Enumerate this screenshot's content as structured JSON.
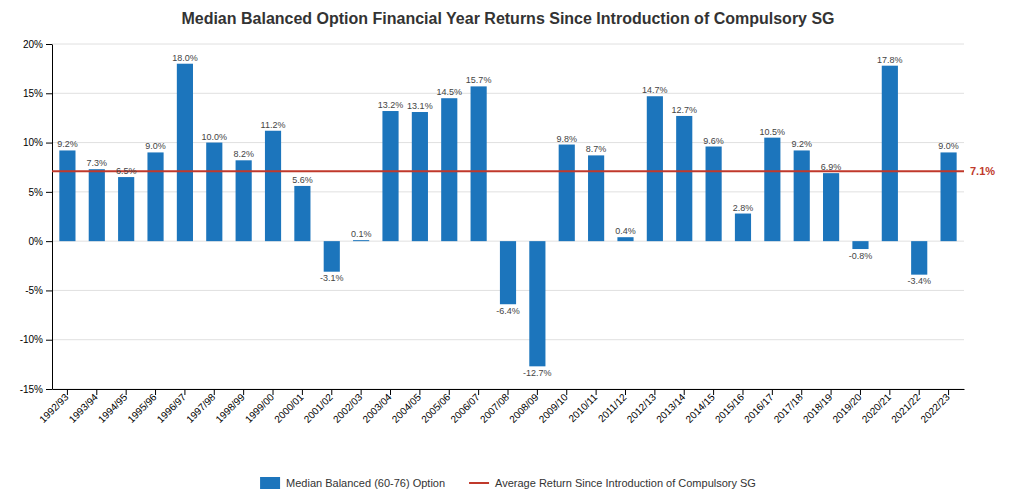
{
  "chart_data": {
    "type": "bar",
    "title": "Median Balanced Option Financial Year Returns Since Introduction of Compulsory SG",
    "categories": [
      "1992/93",
      "1993/94",
      "1994/95",
      "1995/96",
      "1996/97",
      "1997/98",
      "1998/99",
      "1999/00",
      "2000/01",
      "2001/02",
      "2002/03",
      "2003/04",
      "2004/05",
      "2005/06",
      "2006/07",
      "2007/08",
      "2008/09",
      "2009/10",
      "2010/11",
      "2011/12",
      "2012/13",
      "2013/14",
      "2014/15",
      "2015/16",
      "2016/17",
      "2017/18",
      "2018/19",
      "2019/20",
      "2020/21",
      "2021/22",
      "2022/23"
    ],
    "series": [
      {
        "name": "Median Balanced (60-76) Option",
        "type": "bar",
        "color": "#1c75bc",
        "values": [
          9.2,
          7.3,
          6.5,
          9.0,
          18.0,
          10.0,
          8.2,
          11.2,
          5.6,
          -3.1,
          0.1,
          13.2,
          13.1,
          14.5,
          15.7,
          -6.4,
          -12.7,
          9.8,
          8.7,
          0.4,
          14.7,
          12.7,
          9.6,
          2.8,
          10.5,
          9.2,
          6.9,
          -0.8,
          17.8,
          -3.4,
          9.0
        ],
        "value_labels": [
          "9.2%",
          "7.3%",
          "6.5%",
          "9.0%",
          "18.0%",
          "10.0%",
          "8.2%",
          "11.2%",
          "5.6%",
          "-3.1%",
          "0.1%",
          "13.2%",
          "13.1%",
          "14.5%",
          "15.7%",
          "-6.4%",
          "-12.7%",
          "9.8%",
          "8.7%",
          "0.4%",
          "14.7%",
          "12.7%",
          "9.6%",
          "2.8%",
          "10.5%",
          "9.2%",
          "6.9%",
          "-0.8%",
          "17.8%",
          "-3.4%",
          "9.0%"
        ]
      },
      {
        "name": "Average Return Since Introduction of Compulsory SG",
        "type": "hline",
        "color": "#c0392b",
        "value": 7.1,
        "value_label": "7.1%"
      }
    ],
    "ylim": [
      -15,
      20
    ],
    "yticks": [
      {
        "value": -15,
        "label": "-15%"
      },
      {
        "value": -10,
        "label": "-10%"
      },
      {
        "value": -5,
        "label": "-5%"
      },
      {
        "value": 0,
        "label": "0%"
      },
      {
        "value": 5,
        "label": "5%"
      },
      {
        "value": 10,
        "label": "10%"
      },
      {
        "value": 15,
        "label": "15%"
      },
      {
        "value": 20,
        "label": "20%"
      }
    ],
    "grid": true,
    "data_labels": true,
    "legend": "bottom"
  }
}
